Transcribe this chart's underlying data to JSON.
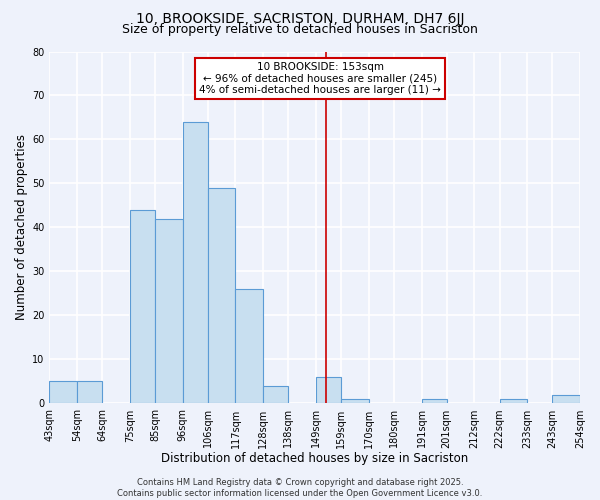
{
  "title": "10, BROOKSIDE, SACRISTON, DURHAM, DH7 6JJ",
  "subtitle": "Size of property relative to detached houses in Sacriston",
  "xlabel": "Distribution of detached houses by size in Sacriston",
  "ylabel": "Number of detached properties",
  "bin_edges": [
    43,
    54,
    64,
    75,
    85,
    96,
    106,
    117,
    128,
    138,
    149,
    159,
    170,
    180,
    191,
    201,
    212,
    222,
    233,
    243,
    254
  ],
  "bin_labels": [
    "43sqm",
    "54sqm",
    "64sqm",
    "75sqm",
    "85sqm",
    "96sqm",
    "106sqm",
    "117sqm",
    "128sqm",
    "138sqm",
    "149sqm",
    "159sqm",
    "170sqm",
    "180sqm",
    "191sqm",
    "201sqm",
    "212sqm",
    "222sqm",
    "233sqm",
    "243sqm",
    "254sqm"
  ],
  "bar_heights": [
    5,
    5,
    0,
    44,
    42,
    64,
    49,
    26,
    4,
    0,
    6,
    1,
    0,
    0,
    1,
    0,
    0,
    1,
    0,
    2
  ],
  "bar_color": "#c8dff0",
  "bar_edge_color": "#5b9bd5",
  "ylim": [
    0,
    80
  ],
  "yticks": [
    0,
    10,
    20,
    30,
    40,
    50,
    60,
    70,
    80
  ],
  "property_line_x": 153,
  "property_line_color": "#cc0000",
  "annotation_line1": "10 BROOKSIDE: 153sqm",
  "annotation_line2": "← 96% of detached houses are smaller (245)",
  "annotation_line3": "4% of semi-detached houses are larger (11) →",
  "annotation_box_color": "#cc0000",
  "footer_line1": "Contains HM Land Registry data © Crown copyright and database right 2025.",
  "footer_line2": "Contains public sector information licensed under the Open Government Licence v3.0.",
  "background_color": "#eef2fb",
  "grid_color": "#ffffff",
  "title_fontsize": 10,
  "subtitle_fontsize": 9,
  "axis_label_fontsize": 8.5,
  "tick_fontsize": 7,
  "annotation_fontsize": 7.5,
  "footer_fontsize": 6
}
